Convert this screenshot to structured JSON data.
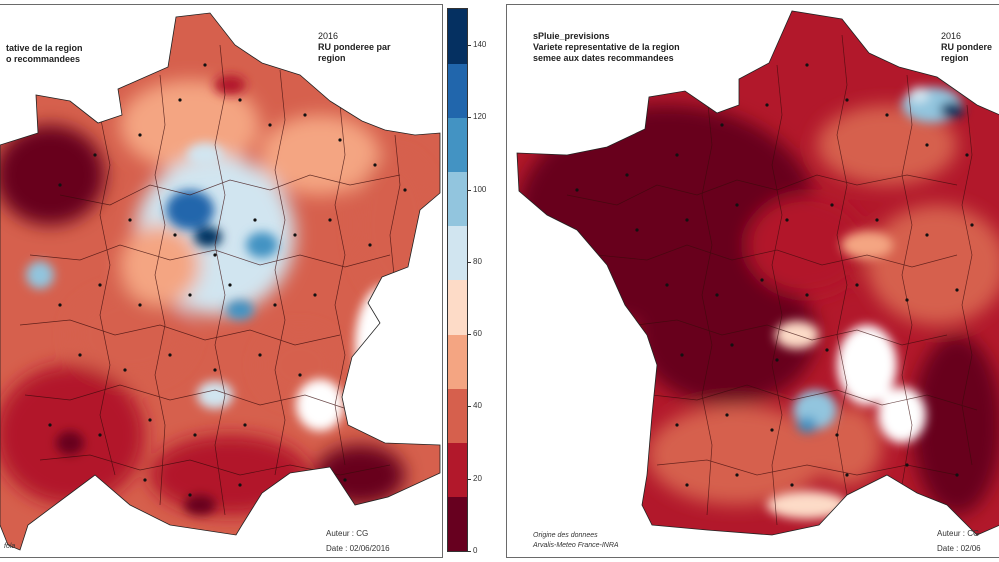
{
  "left_map": {
    "title_lines": [
      "tative de la region",
      "o recommandees"
    ],
    "year": "2016",
    "subtitle_lines": [
      "RU ponderee par",
      "region"
    ],
    "author": "Auteur : CG",
    "date": "Date : 02/06/2016",
    "origin": "fola"
  },
  "right_map": {
    "title_lines": [
      "sPluie_previsions",
      "Variete representative de la region",
      "semee aux dates recommandees"
    ],
    "year": "2016",
    "subtitle_lines": [
      "RU pondere",
      "region"
    ],
    "author": "Auteur : CG",
    "date": "Date : 02/06",
    "origin_lines": [
      "Origine des donnees",
      "Arvalis-Meteo France-INRA"
    ]
  },
  "color_scale": {
    "ticks": [
      "140",
      "120",
      "100",
      "80",
      "60",
      "40",
      "20",
      "0"
    ],
    "min": 0,
    "max": 150,
    "colors": [
      "#67001f",
      "#b2182b",
      "#d6604d",
      "#f4a582",
      "#fddbc7",
      "#d1e5f0",
      "#92c5de",
      "#4393c3",
      "#2166ac",
      "#053061"
    ]
  }
}
